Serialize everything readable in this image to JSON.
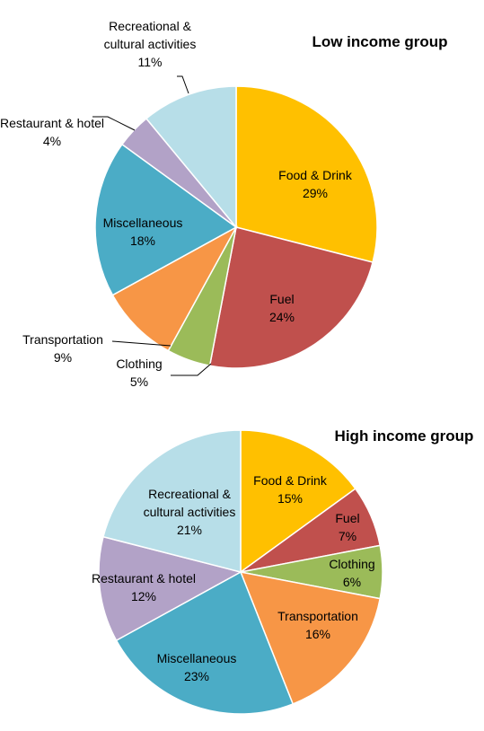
{
  "chart_data": [
    {
      "type": "pie",
      "title": "Low income group",
      "categories": [
        "Food & Drink",
        "Fuel",
        "Clothing",
        "Transportation",
        "Miscellaneous",
        "Restaurant & hotel",
        "Recreational & cultural activities"
      ],
      "values": [
        29,
        24,
        5,
        9,
        18,
        4,
        11
      ],
      "value_labels": [
        "29%",
        "24%",
        "5%",
        "9%",
        "18%",
        "4%",
        "11%"
      ],
      "colors": [
        "#FFC000",
        "#C0504D",
        "#9BBB59",
        "#F79646",
        "#4BACC6",
        "#B2A2C7",
        "#B7DEE8"
      ]
    },
    {
      "type": "pie",
      "title": "High income group",
      "categories": [
        "Food & Drink",
        "Fuel",
        "Clothing",
        "Transportation",
        "Miscellaneous",
        "Restaurant & hotel",
        "Recreational & cultural activities"
      ],
      "values": [
        15,
        7,
        6,
        16,
        23,
        12,
        21
      ],
      "value_labels": [
        "15%",
        "7%",
        "6%",
        "16%",
        "23%",
        "12%",
        "21%"
      ],
      "colors": [
        "#FFC000",
        "#C0504D",
        "#9BBB59",
        "#F79646",
        "#4BACC6",
        "#B2A2C7",
        "#B7DEE8"
      ]
    }
  ]
}
